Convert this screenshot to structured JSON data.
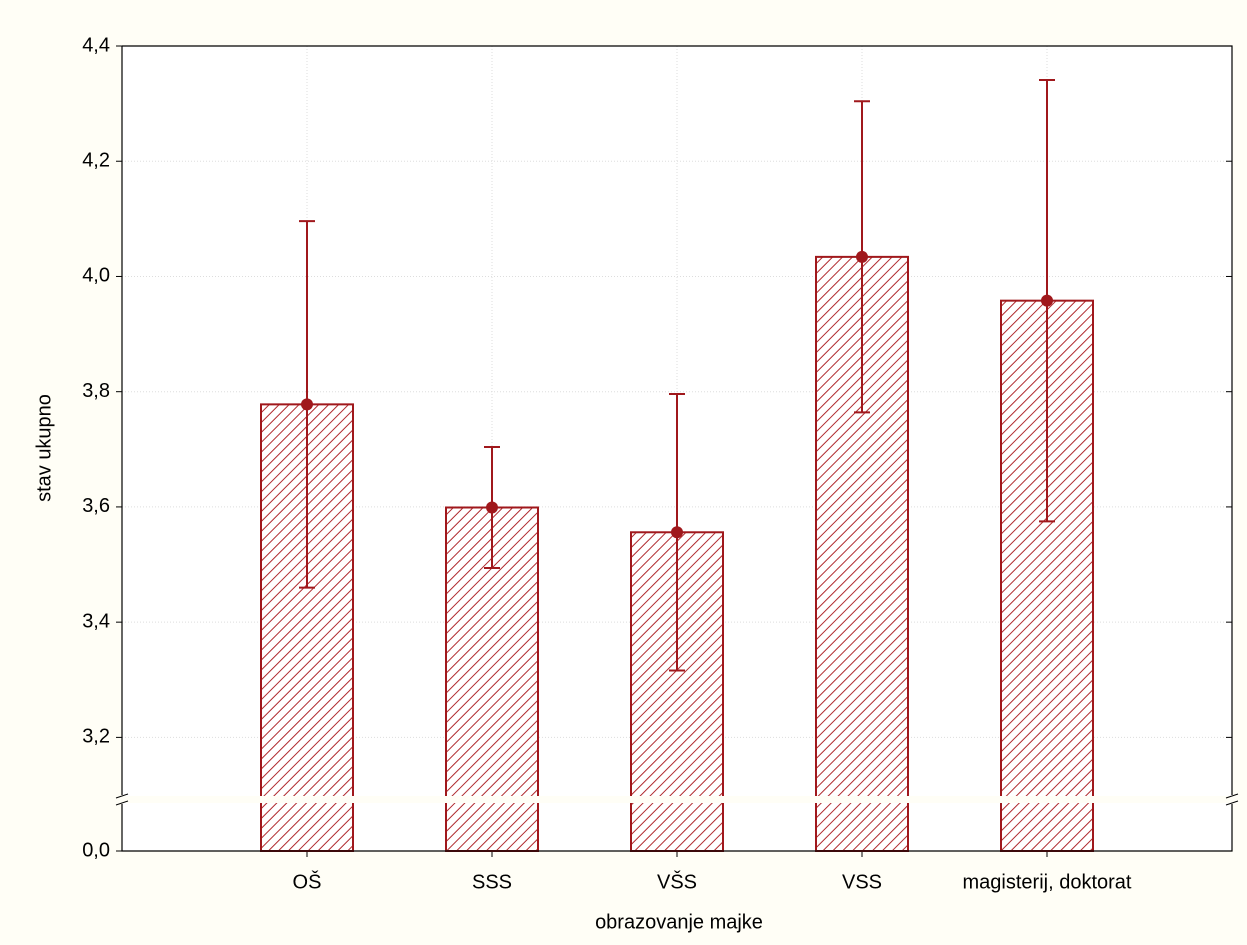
{
  "chart_data": {
    "type": "bar",
    "x_label": "obrazovanje majke",
    "y_label": "stav ukupno",
    "categories": [
      "OŠ",
      "SSS",
      "VŠS",
      "VSS",
      "magisterij, doktorat"
    ],
    "values": [
      3.778,
      3.599,
      3.556,
      4.034,
      3.958
    ],
    "errors": [
      0.318,
      0.105,
      0.24,
      0.27,
      0.383
    ],
    "color": "#a0181c",
    "ylim": [
      0,
      4.4
    ],
    "ybreak": [
      0,
      3.1
    ],
    "yticks": [
      {
        "value": 0,
        "label": "0,0"
      },
      {
        "value": 3.2,
        "label": "3,2"
      },
      {
        "value": 3.4,
        "label": "3,4"
      },
      {
        "value": 3.6,
        "label": "3,6"
      },
      {
        "value": 3.8,
        "label": "3,8"
      },
      {
        "value": 4.0,
        "label": "4,0"
      },
      {
        "value": 4.2,
        "label": "4,2"
      },
      {
        "value": 4.4,
        "label": "4,4"
      }
    ],
    "grid": true
  }
}
